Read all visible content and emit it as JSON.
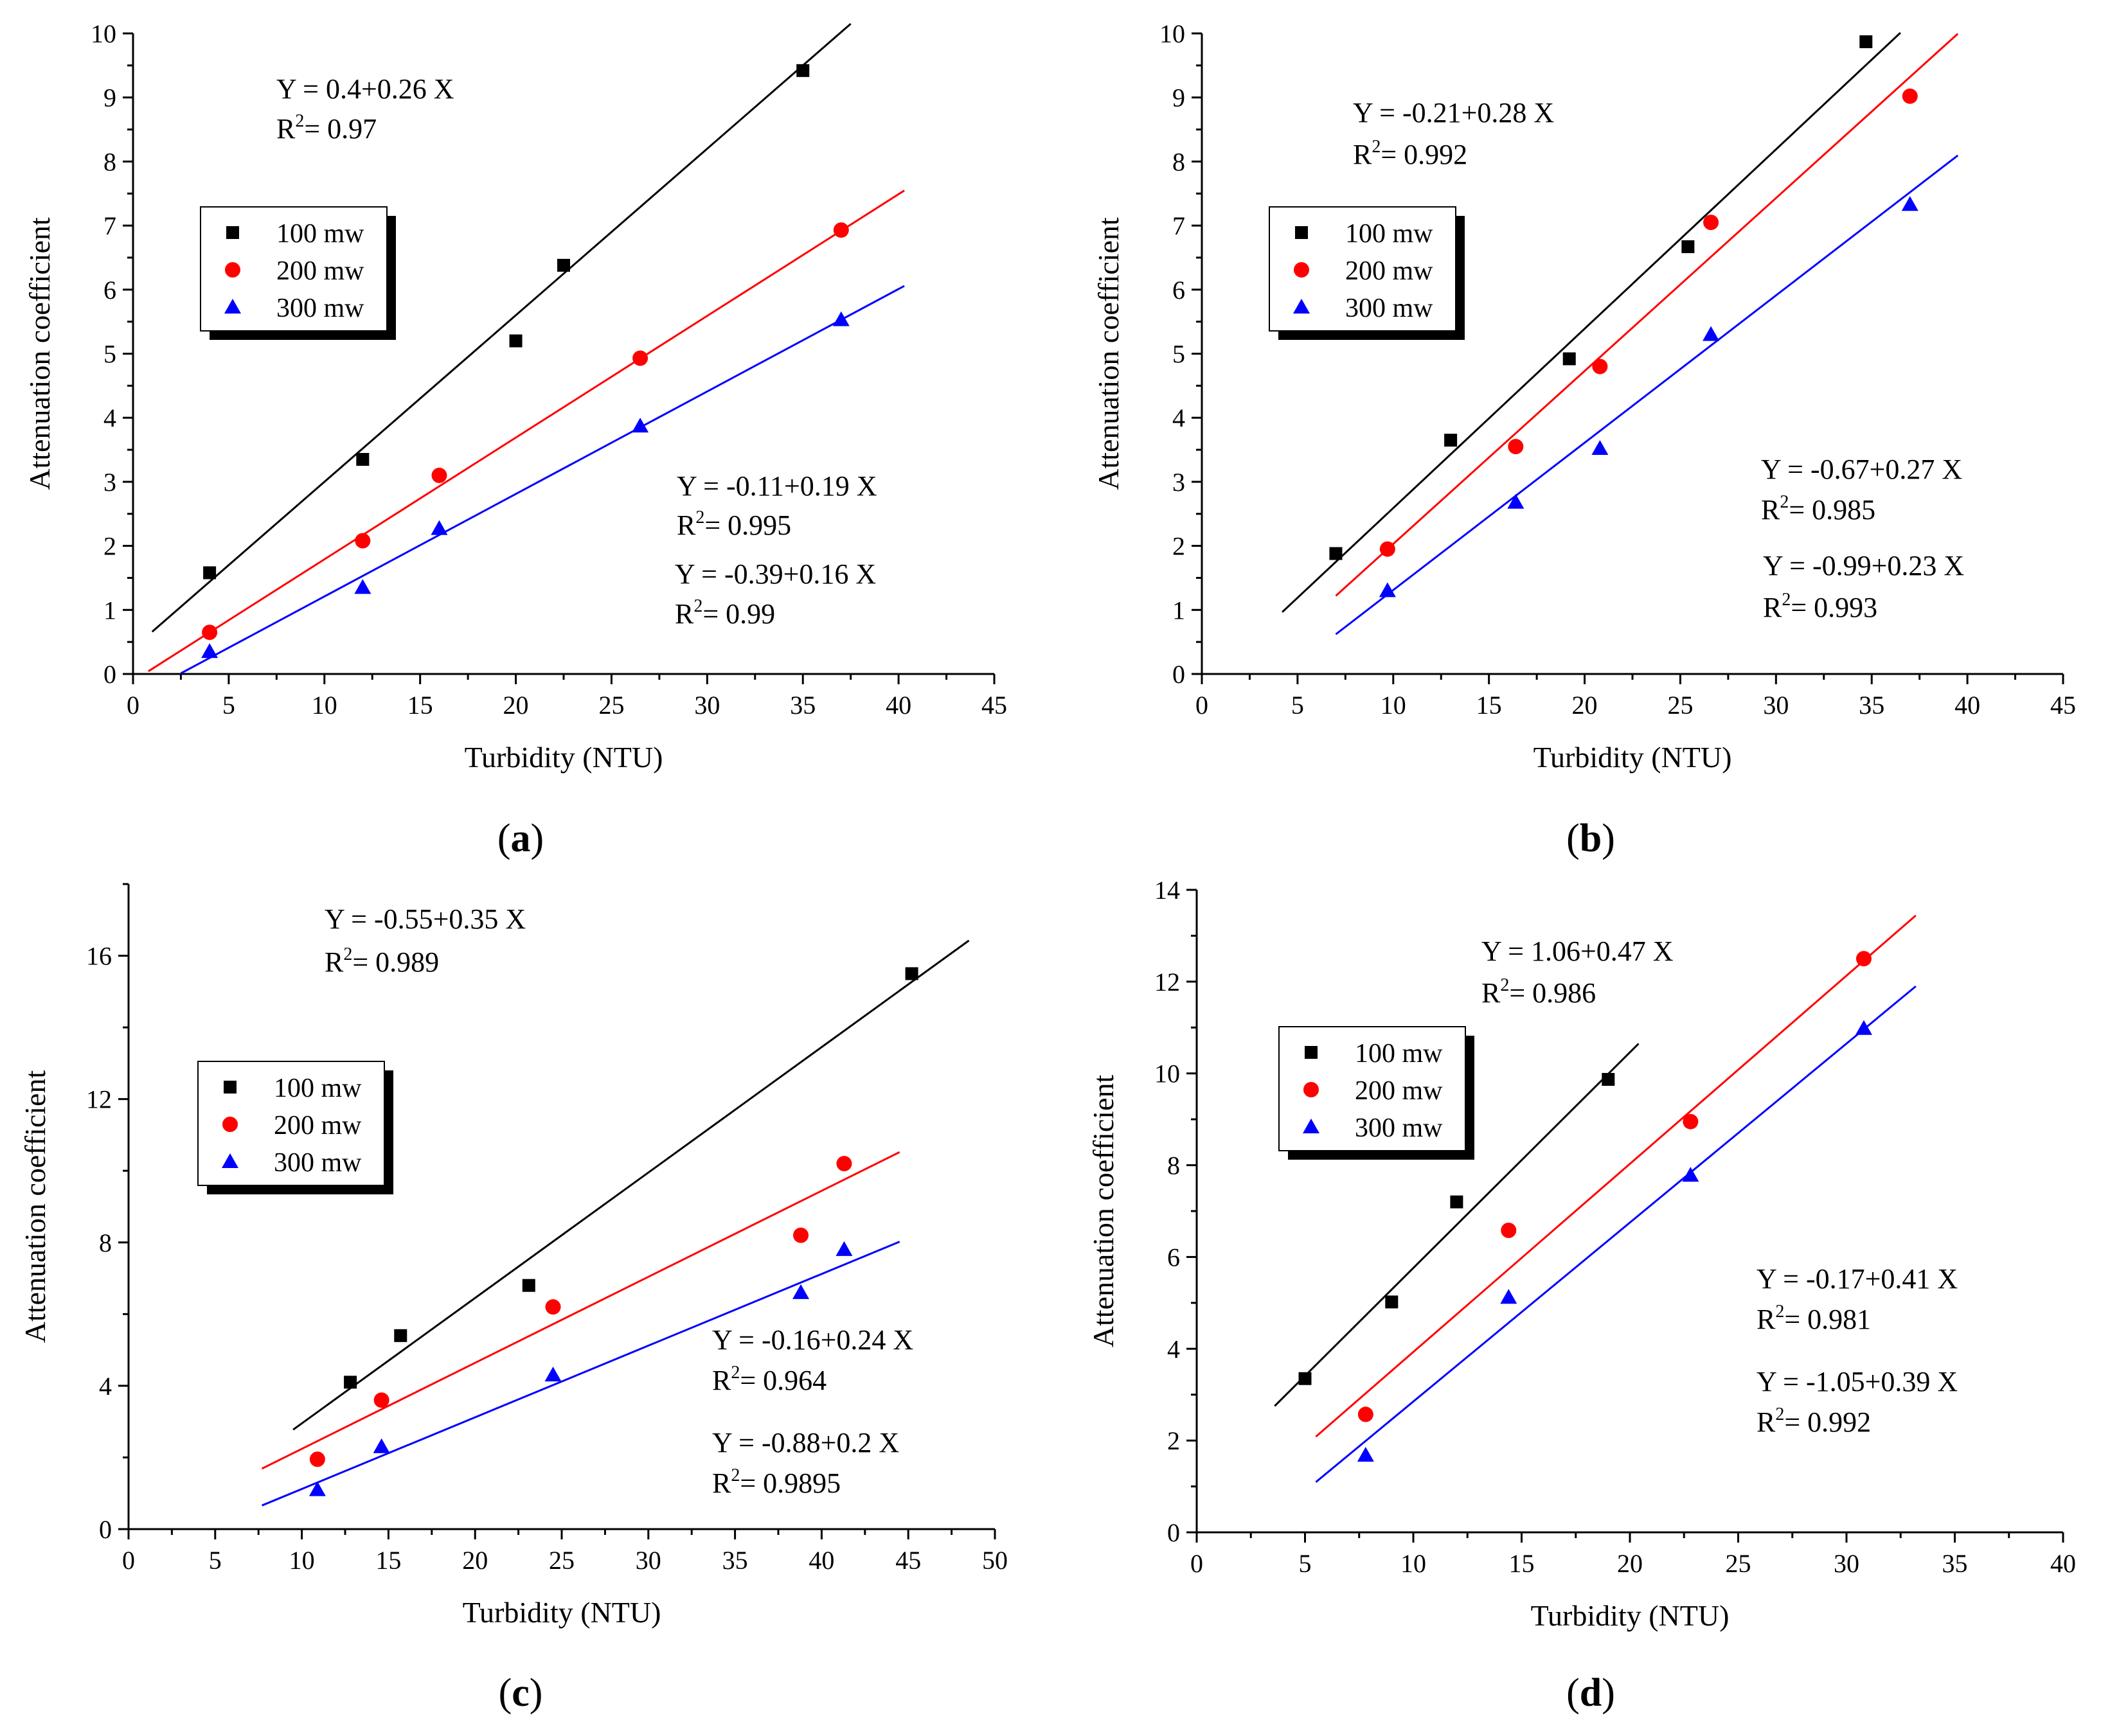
{
  "chart_data": [
    {
      "type": "scatter",
      "panel_label": "a",
      "xlabel": "Turbidity (NTU)",
      "ylabel": "Attenuation coefficient",
      "xlim": [
        0,
        45
      ],
      "ylim": [
        0,
        10
      ],
      "x_ticks": [
        0,
        5,
        10,
        15,
        20,
        25,
        30,
        35,
        40,
        45
      ],
      "y_ticks": [
        0,
        1,
        2,
        3,
        4,
        5,
        6,
        7,
        8,
        9,
        10
      ],
      "legend": {
        "placement": "upper-left",
        "entries": [
          "100 mw",
          "200 mw",
          "300 mw"
        ]
      },
      "series": [
        {
          "name": "100 mw",
          "color": "#000000",
          "marker": "square",
          "x": [
            4,
            12,
            20,
            22.5,
            35
          ],
          "y": [
            1.58,
            3.35,
            5.2,
            6.38,
            9.42
          ],
          "fit": {
            "intercept": 0.4,
            "slope": 0.26,
            "x_range": [
              1,
              37.5
            ]
          }
        },
        {
          "name": "200 mw",
          "color": "#ff0000",
          "marker": "circle",
          "x": [
            4,
            12,
            16,
            26.5,
            37
          ],
          "y": [
            0.65,
            2.08,
            3.1,
            4.93,
            6.93
          ],
          "fit": {
            "intercept": -0.11,
            "slope": 0.19,
            "x_range": [
              0.8,
              40.3
            ]
          }
        },
        {
          "name": "300 mw",
          "color": "#0000ff",
          "marker": "triangle",
          "x": [
            4,
            12,
            16,
            26.5,
            37
          ],
          "y": [
            0.35,
            1.35,
            2.27,
            3.87,
            5.53
          ],
          "fit": {
            "intercept": -0.39,
            "slope": 0.16,
            "x_range": [
              2.5,
              40.3
            ]
          }
        }
      ],
      "annotations": [
        {
          "equation": "Y = 0.4+0.26 X",
          "r2": "= 0.97"
        },
        {
          "equation": "Y = -0.11+0.19 X",
          "r2": "= 0.995"
        },
        {
          "equation": "Y = -0.39+0.16 X",
          "r2": "= 0.99"
        }
      ]
    },
    {
      "type": "scatter",
      "panel_label": "b",
      "xlabel": "Turbidity (NTU)",
      "ylabel": "Attenuation coefficient",
      "xlim": [
        0,
        45
      ],
      "ylim": [
        0,
        10
      ],
      "x_ticks": [
        0,
        5,
        10,
        15,
        20,
        25,
        30,
        35,
        40,
        45
      ],
      "y_ticks": [
        0,
        1,
        2,
        3,
        4,
        5,
        6,
        7,
        8,
        9,
        10
      ],
      "legend": {
        "placement": "upper-left",
        "entries": [
          "100 mw",
          "200 mw",
          "300 mw"
        ]
      },
      "series": [
        {
          "name": "100 mw",
          "color": "#000000",
          "marker": "square",
          "x": [
            7,
            13,
            19.2,
            25.4,
            34.7
          ],
          "y": [
            1.88,
            3.65,
            4.92,
            6.67,
            9.87
          ],
          "fit": {
            "intercept": -0.21,
            "slope": 0.28,
            "x_range": [
              4.2,
              36.5
            ]
          }
        },
        {
          "name": "200 mw",
          "color": "#ff0000",
          "marker": "circle",
          "x": [
            9.7,
            16.4,
            20.8,
            26.6,
            37
          ],
          "y": [
            1.95,
            3.55,
            4.8,
            7.05,
            9.02
          ],
          "fit": {
            "intercept": -0.67,
            "slope": 0.27,
            "x_range": [
              7,
              39.5
            ]
          }
        },
        {
          "name": "300 mw",
          "color": "#0000ff",
          "marker": "triangle",
          "x": [
            9.7,
            16.4,
            20.8,
            26.6,
            37
          ],
          "y": [
            1.3,
            2.68,
            3.52,
            5.3,
            7.33
          ],
          "fit": {
            "intercept": -0.99,
            "slope": 0.23,
            "x_range": [
              7,
              39.5
            ]
          }
        }
      ],
      "annotations": [
        {
          "equation": "Y = -0.21+0.28 X",
          "r2": "= 0.992"
        },
        {
          "equation": "Y = -0.67+0.27 X",
          "r2": "= 0.985"
        },
        {
          "equation": "Y = -0.99+0.23 X",
          "r2": "= 0.993"
        }
      ]
    },
    {
      "type": "scatter",
      "panel_label": "c",
      "xlabel": "Turbidity (NTU)",
      "ylabel": "Attenuation coefficient",
      "xlim": [
        0,
        50
      ],
      "ylim": [
        0,
        18
      ],
      "x_ticks": [
        0,
        5,
        10,
        15,
        20,
        25,
        30,
        35,
        40,
        45,
        50
      ],
      "y_ticks": [
        0,
        4,
        8,
        12,
        16
      ],
      "legend": {
        "placement": "upper-left",
        "entries": [
          "100 mw",
          "200 mw",
          "300 mw"
        ]
      },
      "series": [
        {
          "name": "100 mw",
          "color": "#000000",
          "marker": "square",
          "x": [
            12.8,
            15.7,
            23.1,
            45.2
          ],
          "y": [
            4.1,
            5.4,
            6.8,
            15.5
          ],
          "fit": {
            "intercept": -0.55,
            "slope": 0.35,
            "x_range": [
              9.5,
              48.5
            ]
          }
        },
        {
          "name": "200 mw",
          "color": "#ff0000",
          "marker": "circle",
          "x": [
            10.9,
            14.6,
            24.5,
            38.8,
            41.3
          ],
          "y": [
            1.95,
            3.6,
            6.2,
            8.2,
            10.2
          ],
          "fit": {
            "intercept": -0.16,
            "slope": 0.24,
            "x_range": [
              7.7,
              44.5
            ]
          }
        },
        {
          "name": "300 mw",
          "color": "#0000ff",
          "marker": "triangle",
          "x": [
            10.9,
            14.6,
            24.5,
            38.8,
            41.3
          ],
          "y": [
            1.1,
            2.3,
            4.3,
            6.6,
            7.8
          ],
          "fit": {
            "intercept": -0.88,
            "slope": 0.2,
            "x_range": [
              7.7,
              44.5
            ]
          }
        }
      ],
      "annotations": [
        {
          "equation": "Y = -0.55+0.35 X",
          "r2": "= 0.989"
        },
        {
          "equation": "Y = -0.16+0.24 X",
          "r2": "= 0.964"
        },
        {
          "equation": "Y = -0.88+0.2 X",
          "r2": "= 0.9895"
        }
      ]
    },
    {
      "type": "scatter",
      "panel_label": "d",
      "xlabel": "Turbidity (NTU)",
      "ylabel": "Attenuation coefficient",
      "xlim": [
        0,
        40
      ],
      "ylim": [
        0,
        14
      ],
      "x_ticks": [
        0,
        5,
        10,
        15,
        20,
        25,
        30,
        35,
        40
      ],
      "y_ticks": [
        0,
        2,
        4,
        6,
        8,
        10,
        12,
        14
      ],
      "legend": {
        "placement": "upper-left",
        "entries": [
          "100 mw",
          "200 mw",
          "300 mw"
        ]
      },
      "series": [
        {
          "name": "100 mw",
          "color": "#000000",
          "marker": "square",
          "x": [
            5,
            9,
            12,
            19
          ],
          "y": [
            3.35,
            5.02,
            7.2,
            9.87
          ],
          "fit": {
            "intercept": 1.06,
            "slope": 0.47,
            "x_range": [
              3.6,
              20.4
            ]
          }
        },
        {
          "name": "200 mw",
          "color": "#ff0000",
          "marker": "circle",
          "x": [
            7.8,
            14.4,
            22.8,
            30.8
          ],
          "y": [
            2.57,
            6.58,
            8.95,
            12.5
          ],
          "fit": {
            "intercept": -0.17,
            "slope": 0.41,
            "x_range": [
              5.5,
              33.2
            ]
          }
        },
        {
          "name": "300 mw",
          "color": "#0000ff",
          "marker": "triangle",
          "x": [
            7.8,
            14.4,
            22.8,
            30.8
          ],
          "y": [
            1.68,
            5.12,
            7.78,
            10.98
          ],
          "fit": {
            "intercept": -1.05,
            "slope": 0.39,
            "x_range": [
              5.5,
              33.2
            ]
          }
        }
      ],
      "annotations": [
        {
          "equation": "Y = 1.06+0.47 X",
          "r2": "= 0.986"
        },
        {
          "equation": "Y = -0.17+0.41 X",
          "r2": "= 0.981"
        },
        {
          "equation": "Y = -1.05+0.39 X",
          "r2": "= 0.992"
        }
      ]
    }
  ]
}
